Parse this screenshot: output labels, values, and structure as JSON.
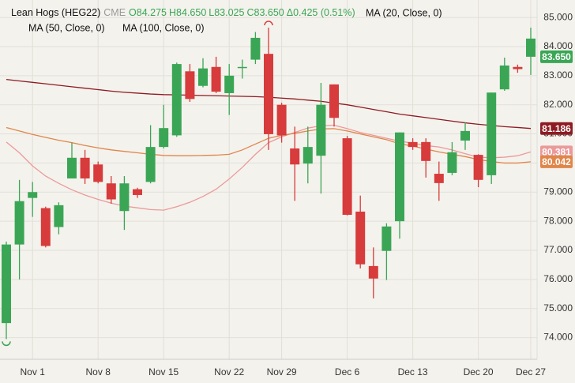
{
  "chart_data": {
    "type": "candlestick",
    "title": "Lean Hogs (HEG22)",
    "exchange": "CME",
    "quote": [
      "O84.275",
      "H84.650",
      "L83.025",
      "C83.650",
      "Δ0.425 (0.51%)"
    ],
    "last_price_label": "83.650",
    "categories": [
      null,
      null,
      "Nov 1",
      null,
      null,
      null,
      null,
      "Nov 8",
      null,
      null,
      null,
      null,
      "Nov 15",
      null,
      null,
      null,
      null,
      "Nov 22",
      null,
      null,
      null,
      "Nov 29",
      null,
      null,
      null,
      null,
      "Dec 6",
      null,
      null,
      null,
      null,
      "Dec 13",
      null,
      null,
      null,
      null,
      "Dec 20",
      null,
      null,
      null,
      "Dec 27"
    ],
    "open": [
      74.5,
      77.2,
      78.8,
      78.45,
      77.8,
      79.47,
      80.18,
      79.95,
      79.3,
      78.35,
      79.1,
      79.35,
      80.55,
      80.95,
      83.15,
      82.65,
      83.3,
      82.4,
      83.27,
      83.55,
      83.75,
      82.0,
      80.5,
      79.98,
      80.25,
      82.7,
      80.85,
      78.33,
      76.46,
      76.98,
      78.0,
      80.72,
      80.72,
      79.63,
      79.66,
      80.77,
      80.28,
      79.58,
      82.53,
      83.3,
      84.275
    ],
    "high": [
      77.3,
      79.42,
      79.35,
      78.5,
      78.65,
      80.7,
      80.45,
      80.05,
      79.55,
      79.55,
      79.15,
      81.3,
      82.0,
      83.45,
      83.4,
      83.6,
      83.65,
      83.4,
      83.55,
      84.5,
      84.65,
      82.07,
      81.25,
      81.25,
      82.75,
      82.7,
      80.93,
      78.88,
      77.1,
      77.93,
      81.05,
      80.85,
      80.85,
      80.05,
      80.72,
      81.4,
      80.3,
      82.42,
      83.62,
      83.38,
      84.65
    ],
    "low": [
      73.95,
      76.0,
      78.15,
      77.1,
      77.55,
      79.47,
      79.28,
      79.3,
      78.6,
      77.7,
      78.8,
      79.3,
      80.5,
      80.9,
      82.1,
      82.6,
      82.4,
      81.65,
      82.9,
      83.4,
      80.45,
      80.7,
      78.7,
      79.3,
      78.95,
      81.25,
      78.2,
      76.38,
      75.35,
      75.98,
      77.4,
      80.45,
      79.5,
      78.7,
      79.58,
      80.45,
      79.17,
      79.28,
      82.48,
      83.1,
      83.025
    ],
    "close": [
      77.2,
      78.69,
      79.0,
      77.15,
      78.55,
      80.18,
      79.47,
      79.35,
      78.75,
      79.3,
      78.9,
      80.55,
      81.2,
      83.4,
      82.2,
      83.25,
      82.45,
      83.0,
      83.3,
      84.3,
      80.99,
      80.95,
      79.95,
      80.55,
      82.0,
      81.55,
      78.22,
      76.52,
      76.03,
      77.82,
      81.05,
      80.55,
      80.07,
      79.31,
      80.37,
      81.1,
      79.42,
      82.42,
      83.35,
      83.225,
      83.65
    ],
    "up_color": "#3aa655",
    "down_color": "#d73b3b",
    "series": [
      {
        "name": "MA (20, Close, 0)",
        "color": "#eb9a9a",
        "values": [
          80.72,
          80.35,
          79.9,
          79.55,
          79.3,
          79.08,
          78.9,
          78.75,
          78.62,
          78.52,
          78.46,
          78.4,
          78.38,
          78.5,
          78.65,
          78.85,
          79.1,
          79.45,
          79.85,
          80.3,
          80.7,
          80.9,
          81.05,
          81.2,
          81.28,
          81.3,
          81.18,
          81.05,
          80.95,
          80.85,
          80.75,
          80.68,
          80.6,
          80.55,
          80.45,
          80.32,
          80.2,
          80.18,
          80.2,
          80.25,
          80.381
        ]
      },
      {
        "name": "MA (50, Close, 0)",
        "color": "#e0864a",
        "values": [
          81.22,
          81.1,
          80.98,
          80.88,
          80.78,
          80.7,
          80.6,
          80.52,
          80.45,
          80.4,
          80.35,
          80.3,
          80.26,
          80.25,
          80.25,
          80.26,
          80.27,
          80.3,
          80.45,
          80.65,
          80.85,
          80.95,
          81.02,
          81.1,
          81.17,
          81.18,
          81.1,
          81.0,
          80.9,
          80.8,
          80.66,
          80.58,
          80.48,
          80.38,
          80.3,
          80.22,
          80.12,
          80.05,
          80.0,
          80.0,
          80.042
        ]
      },
      {
        "name": "MA (100, Close, 0)",
        "color": "#8e1b22",
        "values": [
          82.87,
          82.82,
          82.77,
          82.72,
          82.67,
          82.62,
          82.57,
          82.52,
          82.47,
          82.43,
          82.4,
          82.37,
          82.35,
          82.34,
          82.33,
          82.32,
          82.31,
          82.3,
          82.29,
          82.28,
          82.26,
          82.23,
          82.2,
          82.16,
          82.12,
          82.06,
          82.0,
          81.92,
          81.84,
          81.76,
          81.68,
          81.62,
          81.56,
          81.5,
          81.44,
          81.38,
          81.33,
          81.29,
          81.25,
          81.22,
          81.186
        ]
      }
    ],
    "ylim": [
      73.5,
      85.6
    ],
    "yticks": [
      {
        "value": 74,
        "label": "74.000"
      },
      {
        "value": 75,
        "label": "75.000"
      },
      {
        "value": 76,
        "label": "76.000"
      },
      {
        "value": 77,
        "label": "77.000"
      },
      {
        "value": 78,
        "label": "78.000"
      },
      {
        "value": 79,
        "label": "79.000"
      },
      {
        "value": 80,
        "label": "80.000"
      },
      {
        "value": 81,
        "label": "81.000"
      },
      {
        "value": 82,
        "label": "82.000"
      },
      {
        "value": 83,
        "label": "83.000"
      },
      {
        "value": 84,
        "label": "84.000"
      },
      {
        "value": 85,
        "label": "85.000"
      }
    ],
    "grid": true
  }
}
